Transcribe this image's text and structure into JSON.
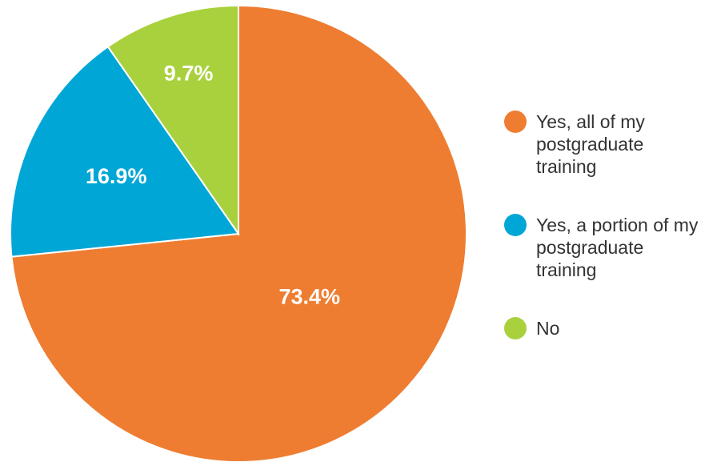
{
  "chart_data": {
    "type": "pie",
    "categories": [
      "Yes, all of my postgraduate training",
      "Yes, a portion of my postgraduate training",
      "No"
    ],
    "values": [
      73.4,
      16.9,
      9.7
    ],
    "value_labels": [
      "73.4%",
      "16.9%",
      "9.7%"
    ],
    "colors": [
      "#ee7d31",
      "#00a6d6",
      "#a9d13e"
    ]
  }
}
